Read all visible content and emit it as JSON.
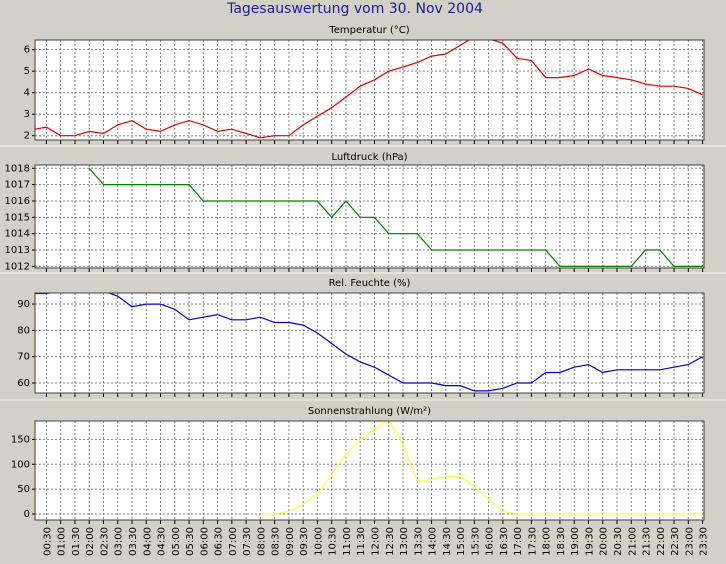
{
  "title": "Tagesauswertung vom 30. Nov 2004",
  "chart_data": [
    {
      "type": "line",
      "title": "Temperatur (°C)",
      "color": "#e00000",
      "grid": true,
      "x": [
        0.1,
        0.5,
        1,
        1.5,
        2,
        2.5,
        3,
        3.5,
        4,
        4.5,
        5,
        5.5,
        6,
        6.5,
        7,
        7.5,
        8,
        8.5,
        9,
        9.5,
        10,
        10.5,
        11,
        11.5,
        12,
        12.5,
        13,
        13.5,
        14,
        14.5,
        15,
        15.5,
        16,
        16.5,
        17,
        17.5,
        18,
        18.5,
        19,
        19.5,
        20,
        20.5,
        21,
        21.5,
        22,
        22.5,
        23,
        23.5
      ],
      "values": [
        2.3,
        2.4,
        2.0,
        2.0,
        2.2,
        2.1,
        2.5,
        2.7,
        2.3,
        2.2,
        2.5,
        2.7,
        2.5,
        2.2,
        2.3,
        2.1,
        1.9,
        2.0,
        2.0,
        2.5,
        2.9,
        3.3,
        3.8,
        4.3,
        4.6,
        5.0,
        5.2,
        5.4,
        5.7,
        5.8,
        6.2,
        6.6,
        6.5,
        6.3,
        5.6,
        5.5,
        4.7,
        4.7,
        4.8,
        5.1,
        4.8,
        4.7,
        4.6,
        4.4,
        4.3,
        4.3,
        4.2,
        3.9
      ],
      "xlim": [
        0.1,
        23.55
      ],
      "ylim": [
        1.8,
        6.45
      ],
      "yticks": [
        2,
        3,
        4,
        5,
        6
      ]
    },
    {
      "type": "line",
      "title": "Luftdruck (hPa)",
      "color": "#008000",
      "grid": true,
      "x": [
        0.1,
        0.5,
        1,
        1.5,
        2,
        2.5,
        3,
        3.5,
        4,
        4.5,
        5,
        5.5,
        6,
        6.5,
        7,
        7.5,
        8,
        8.5,
        9,
        9.5,
        10,
        10.5,
        11,
        11.5,
        12,
        12.5,
        13,
        13.5,
        14,
        14.5,
        15,
        15.5,
        16,
        16.5,
        17,
        17.5,
        18,
        18.5,
        19,
        19.5,
        20,
        20.5,
        21,
        21.5,
        22,
        22.5,
        23,
        23.5
      ],
      "values": [
        null,
        null,
        null,
        null,
        1018,
        1017,
        1017,
        1017,
        1017,
        1017,
        1017,
        1017,
        1016,
        1016,
        1016,
        1016,
        1016,
        1016,
        1016,
        1016,
        1016,
        1015,
        1016,
        1015,
        1015,
        1014,
        1014,
        1014,
        1013,
        1013,
        1013,
        1013,
        1013,
        1013,
        1013,
        1013,
        1013,
        1012,
        1012,
        1012,
        1012,
        1012,
        1012,
        1013,
        1013,
        1012,
        1012,
        1012
      ],
      "xlim": [
        0.1,
        23.55
      ],
      "ylim": [
        1011.9,
        1018.2
      ],
      "yticks": [
        1012,
        1013,
        1014,
        1015,
        1016,
        1017,
        1018
      ]
    },
    {
      "type": "line",
      "title": "Rel. Feuchte (%)",
      "color": "#0000c0",
      "grid": true,
      "x": [
        0.1,
        0.5,
        1,
        1.5,
        2,
        2.5,
        3,
        3.5,
        4,
        4.5,
        5,
        5.5,
        6,
        6.5,
        7,
        7.5,
        8,
        8.5,
        9,
        9.5,
        10,
        10.5,
        11,
        11.5,
        12,
        12.5,
        13,
        13.5,
        14,
        14.5,
        15,
        15.5,
        16,
        16.5,
        17,
        17.5,
        18,
        18.5,
        19,
        19.5,
        20,
        20.5,
        21,
        21.5,
        22,
        22.5,
        23,
        23.5
      ],
      "values": [
        94,
        94,
        95,
        95,
        95,
        95,
        93,
        89,
        90,
        90,
        88,
        84,
        85,
        86,
        84,
        84,
        85,
        83,
        83,
        82,
        79,
        75,
        71,
        68,
        66,
        63,
        60,
        60,
        60,
        59,
        59,
        57,
        57,
        58,
        60,
        60,
        64,
        64,
        66,
        67,
        64,
        65,
        65,
        65,
        65,
        66,
        67,
        70
      ],
      "xlim": [
        0.1,
        23.55
      ],
      "ylim": [
        56.2,
        94.2
      ],
      "yticks": [
        60,
        70,
        80,
        90
      ]
    },
    {
      "type": "line",
      "title": "Sonnenstrahlung (W/m²)",
      "color": "#ffff40",
      "grid": true,
      "x": [
        0.1,
        0.5,
        1,
        1.5,
        2,
        2.5,
        3,
        3.5,
        4,
        4.5,
        5,
        5.5,
        6,
        6.5,
        7,
        7.5,
        8,
        8.5,
        9,
        9.5,
        10,
        10.5,
        11,
        11.5,
        12,
        12.5,
        13,
        13.5,
        14,
        14.5,
        15,
        15.5,
        16,
        16.5,
        17,
        17.5,
        18,
        18.5,
        19,
        19.5,
        20,
        20.5,
        21,
        21.5,
        22,
        22.5,
        23,
        23.5
      ],
      "values": [
        null,
        null,
        null,
        null,
        null,
        null,
        null,
        null,
        null,
        null,
        null,
        null,
        null,
        null,
        null,
        null,
        0,
        0,
        5,
        20,
        40,
        80,
        120,
        150,
        170,
        190,
        140,
        65,
        70,
        75,
        75,
        55,
        30,
        5,
        0,
        0,
        0,
        0,
        0,
        0,
        0,
        0,
        0,
        0,
        0,
        0,
        0,
        0
      ],
      "xlim": [
        0.1,
        23.55
      ],
      "ylim": [
        -12,
        187
      ],
      "yticks": [
        0,
        50,
        100,
        150
      ],
      "xticks": [
        {
          "value": 0.5,
          "label": "00:30"
        },
        {
          "value": 1,
          "label": "01:00"
        },
        {
          "value": 1.5,
          "label": "01:30"
        },
        {
          "value": 2,
          "label": "02:00"
        },
        {
          "value": 2.5,
          "label": "02:30"
        },
        {
          "value": 3,
          "label": "03:00"
        },
        {
          "value": 3.5,
          "label": "03:30"
        },
        {
          "value": 4,
          "label": "04:00"
        },
        {
          "value": 4.5,
          "label": "04:30"
        },
        {
          "value": 5,
          "label": "05:00"
        },
        {
          "value": 5.5,
          "label": "05:30"
        },
        {
          "value": 6,
          "label": "06:00"
        },
        {
          "value": 6.5,
          "label": "06:30"
        },
        {
          "value": 7,
          "label": "07:00"
        },
        {
          "value": 7.5,
          "label": "07:30"
        },
        {
          "value": 8,
          "label": "08:00"
        },
        {
          "value": 8.5,
          "label": "08:30"
        },
        {
          "value": 9,
          "label": "09:00"
        },
        {
          "value": 9.5,
          "label": "09:30"
        },
        {
          "value": 10,
          "label": "10:00"
        },
        {
          "value": 10.5,
          "label": "10:30"
        },
        {
          "value": 11,
          "label": "11:00"
        },
        {
          "value": 11.5,
          "label": "11:30"
        },
        {
          "value": 12,
          "label": "12:00"
        },
        {
          "value": 12.5,
          "label": "12:30"
        },
        {
          "value": 13,
          "label": "13:00"
        },
        {
          "value": 13.5,
          "label": "13:30"
        },
        {
          "value": 14,
          "label": "14:00"
        },
        {
          "value": 14.5,
          "label": "14:30"
        },
        {
          "value": 15,
          "label": "15:00"
        },
        {
          "value": 15.5,
          "label": "15:30"
        },
        {
          "value": 16,
          "label": "16:00"
        },
        {
          "value": 16.5,
          "label": "16:30"
        },
        {
          "value": 17,
          "label": "17:00"
        },
        {
          "value": 17.5,
          "label": "17:30"
        },
        {
          "value": 18,
          "label": "18:00"
        },
        {
          "value": 18.5,
          "label": "18:30"
        },
        {
          "value": 19,
          "label": "19:00"
        },
        {
          "value": 19.5,
          "label": "19:30"
        },
        {
          "value": 20,
          "label": "20:00"
        },
        {
          "value": 20.5,
          "label": "20:30"
        },
        {
          "value": 21,
          "label": "21:00"
        },
        {
          "value": 21.5,
          "label": "21:30"
        },
        {
          "value": 22,
          "label": "22:00"
        },
        {
          "value": 22.5,
          "label": "22:30"
        },
        {
          "value": 23,
          "label": "23:00"
        },
        {
          "value": 23.5,
          "label": "23:30"
        }
      ]
    }
  ]
}
